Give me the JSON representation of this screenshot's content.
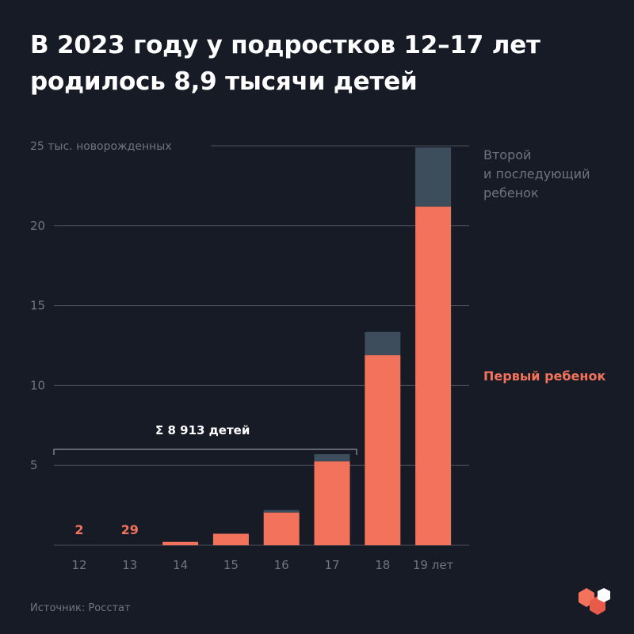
{
  "title_lines": [
    "В 2023 году у подростков 12–17 лет",
    "родилось 8,9 тысячи детей"
  ],
  "source": "Источник: Росстат",
  "colors": {
    "background": "#161b26",
    "first_child": "#f2725b",
    "second_child": "#3d4d5b",
    "grid": "#4a505c",
    "axis_text": "#6e7480"
  },
  "chart_data": {
    "type": "bar",
    "stacked": true,
    "categories": [
      "12",
      "13",
      "14",
      "15",
      "16",
      "17",
      "18",
      "19 лет"
    ],
    "series": [
      {
        "name": "Первый ребенок",
        "values": [
          0.002,
          0.029,
          0.21,
          0.72,
          2.05,
          5.25,
          11.9,
          21.2
        ]
      },
      {
        "name": "Второй и последующий ребенок",
        "values": [
          0,
          0,
          0,
          0,
          0.15,
          0.45,
          1.45,
          3.7
        ]
      }
    ],
    "ylabel": "25 тыс. новорожденных",
    "yticks": [
      "5",
      "10",
      "15",
      "20"
    ],
    "ylim": [
      0,
      25
    ],
    "value_labels": [
      {
        "category": "12",
        "text": "2"
      },
      {
        "category": "13",
        "text": "29"
      }
    ],
    "legend": [
      "Второй",
      "и последующий",
      "ребенок"
    ],
    "legend_first": "Первый ребенок",
    "annotation": "Σ  8 913 детей",
    "grid": true
  }
}
